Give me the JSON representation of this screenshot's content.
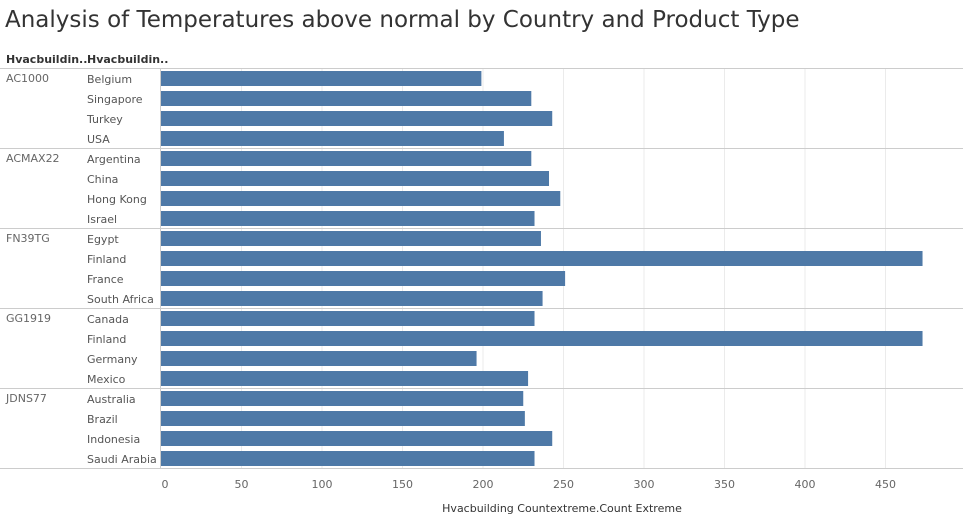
{
  "chart_data": {
    "type": "bar",
    "orientation": "horizontal",
    "title": "Analysis of Temperatures above normal by Country and Product Type",
    "row_headers": [
      "Hvacbuildin..",
      "Hvacbuildin.."
    ],
    "xlabel": "Hvacbuilding Countextreme.Count Extreme",
    "xlim": [
      0,
      480
    ],
    "xticks": [
      0,
      50,
      100,
      150,
      200,
      250,
      300,
      350,
      400,
      450
    ],
    "bar_color": "#4e79a7",
    "grid": true,
    "groups": [
      {
        "name": "AC1000",
        "categories": [
          "Belgium",
          "Singapore",
          "Turkey",
          "USA"
        ],
        "values": [
          199,
          230,
          243,
          213
        ]
      },
      {
        "name": "ACMAX22",
        "categories": [
          "Argentina",
          "China",
          "Hong Kong",
          "Israel"
        ],
        "values": [
          230,
          241,
          248,
          232
        ]
      },
      {
        "name": "FN39TG",
        "categories": [
          "Egypt",
          "Finland",
          "France",
          "South Africa"
        ],
        "values": [
          236,
          473,
          251,
          237
        ]
      },
      {
        "name": "GG1919",
        "categories": [
          "Canada",
          "Finland",
          "Germany",
          "Mexico"
        ],
        "values": [
          232,
          473,
          196,
          228
        ]
      },
      {
        "name": "JDNS77",
        "categories": [
          "Australia",
          "Brazil",
          "Indonesia",
          "Saudi Arabia"
        ],
        "values": [
          225,
          226,
          243,
          232
        ]
      }
    ]
  }
}
